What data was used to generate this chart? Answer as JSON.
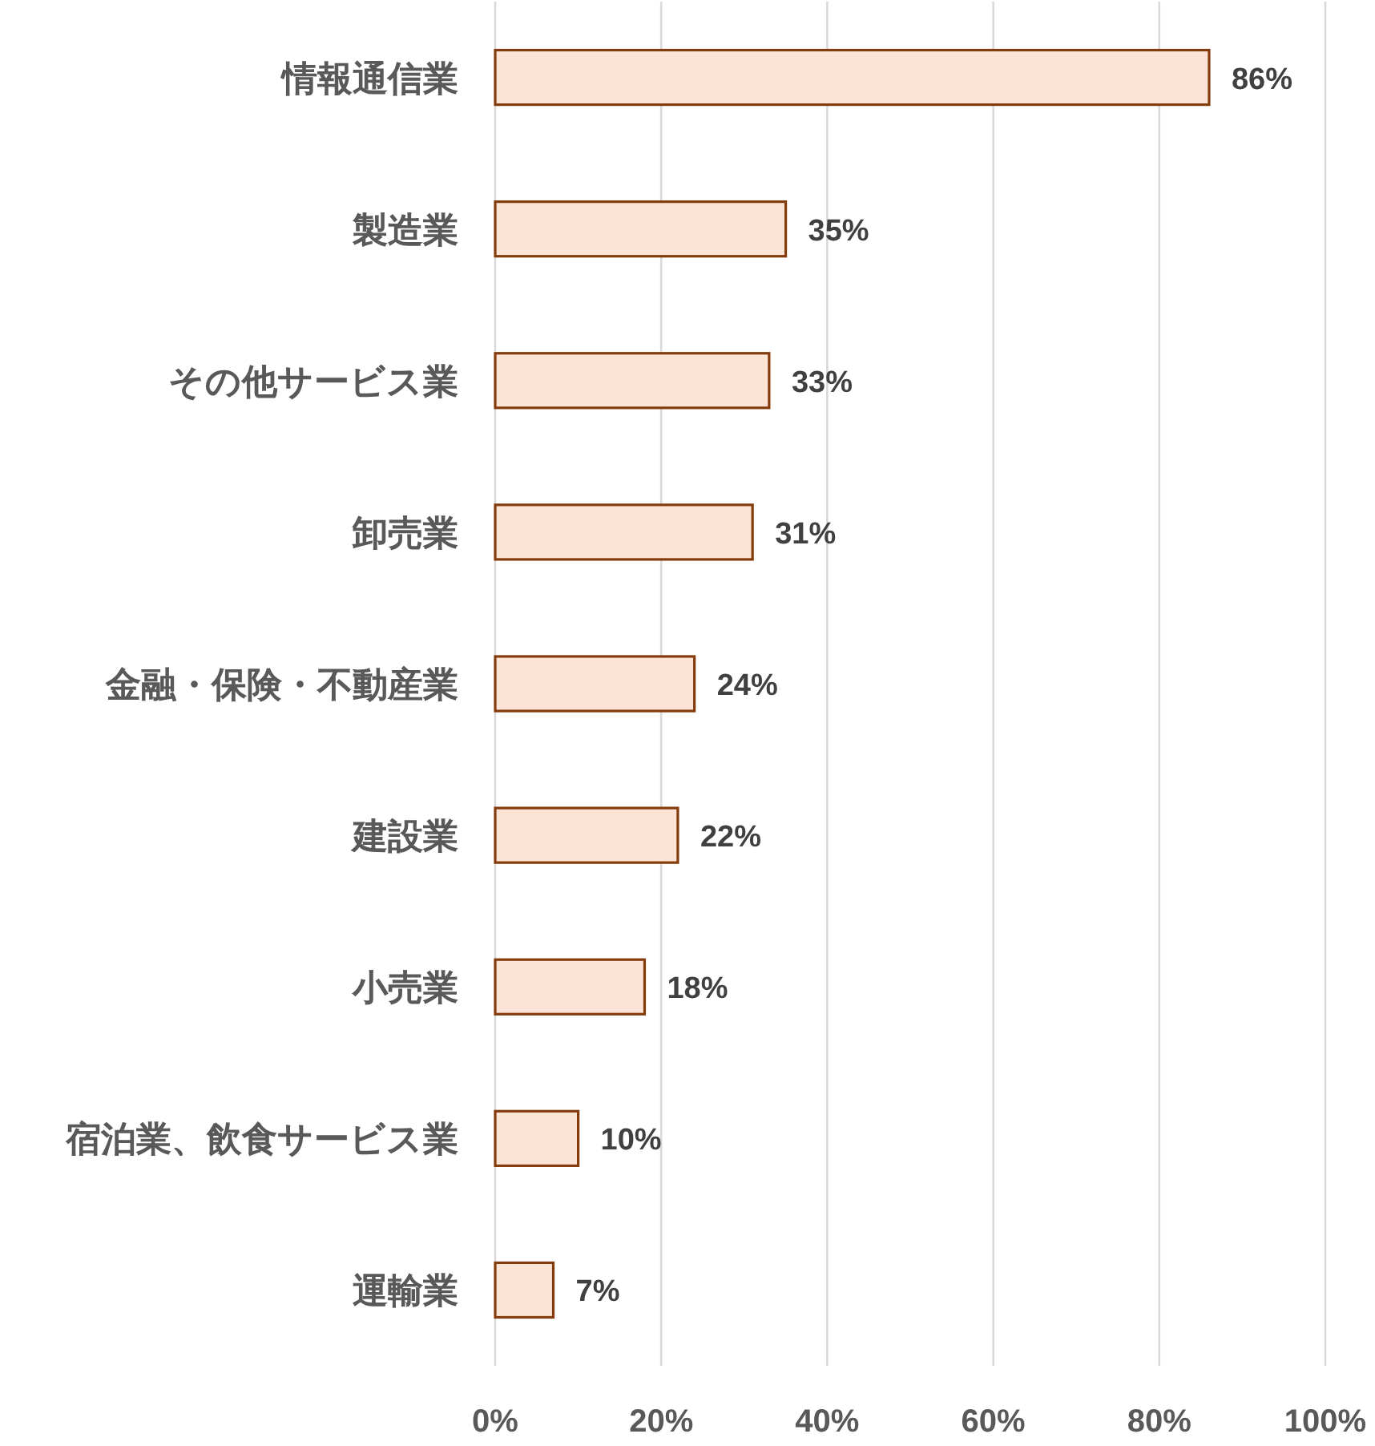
{
  "chart_data": {
    "type": "bar",
    "orientation": "horizontal",
    "categories": [
      "情報通信業",
      "製造業",
      "その他サービス業",
      "卸売業",
      "金融・保険・不動産業",
      "建設業",
      "小売業",
      "宿泊業、飲食サービス業",
      "運輸業"
    ],
    "values": [
      86,
      35,
      33,
      31,
      24,
      22,
      18,
      10,
      7
    ],
    "value_labels": [
      "86%",
      "35%",
      "33%",
      "31%",
      "24%",
      "22%",
      "18%",
      "10%",
      "7%"
    ],
    "color": "#fbe4d6",
    "xlim": [
      0,
      100
    ],
    "xticks": [
      {
        "value": 0,
        "label": "0%"
      },
      {
        "value": 20,
        "label": "20%"
      },
      {
        "value": 40,
        "label": "40%"
      },
      {
        "value": 60,
        "label": "60%"
      },
      {
        "value": 80,
        "label": "80%"
      },
      {
        "value": 100,
        "label": "100%"
      }
    ],
    "grid": "x"
  }
}
